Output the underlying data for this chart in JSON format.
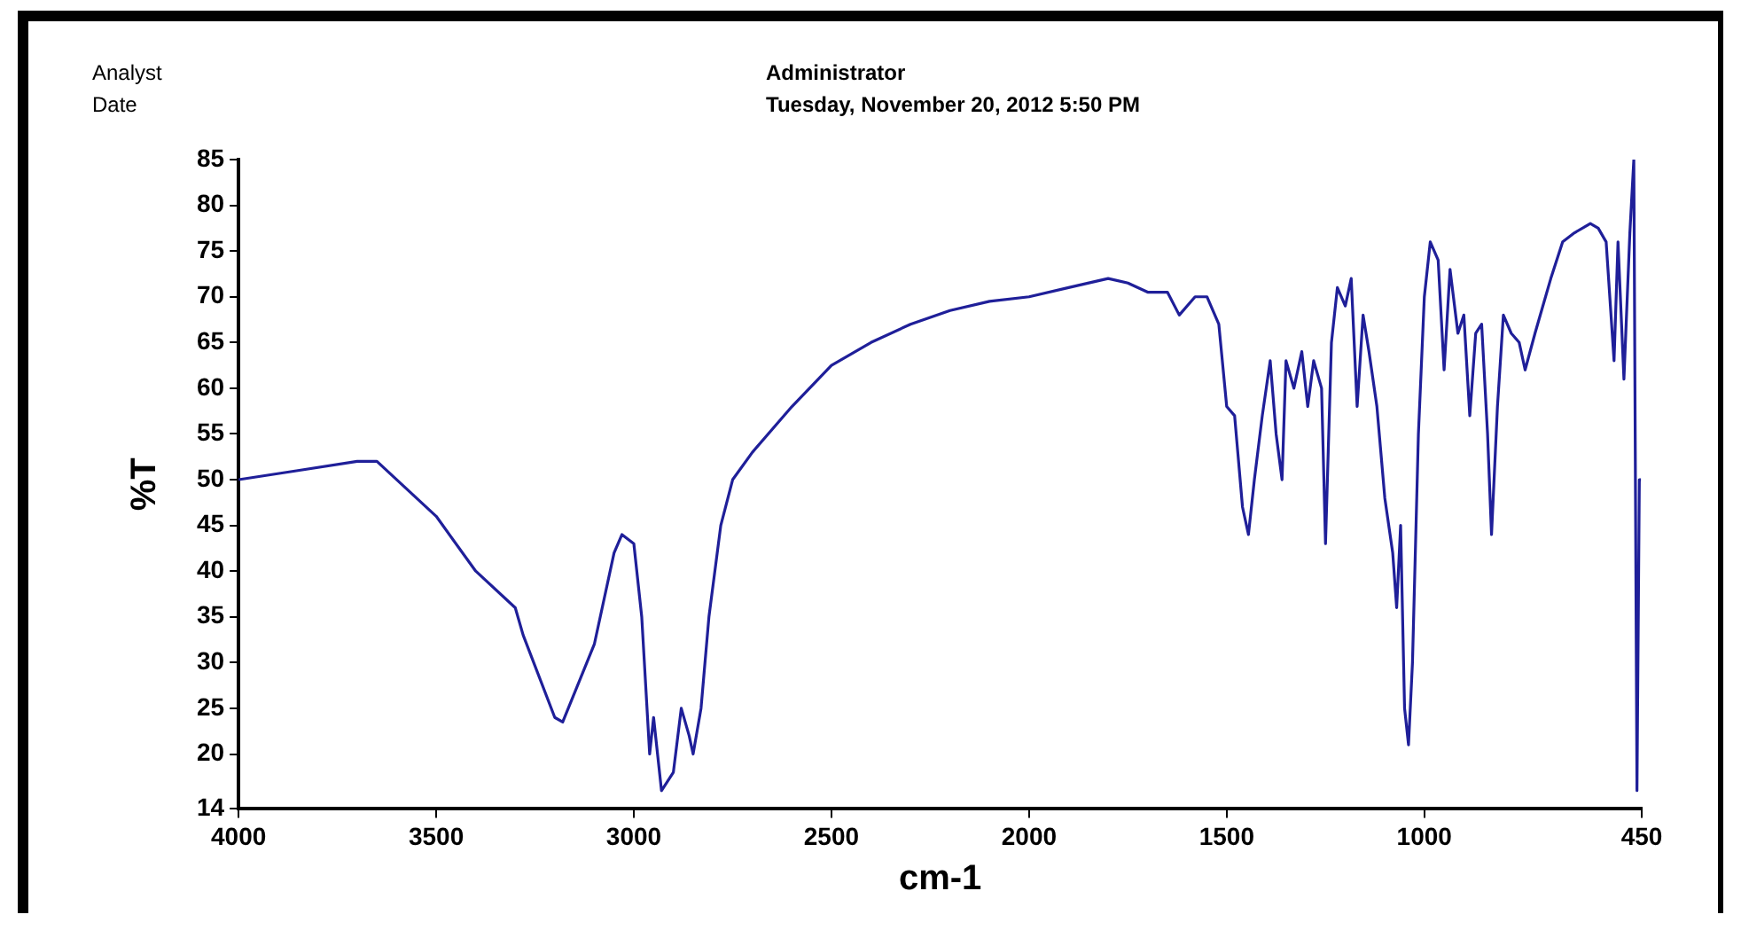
{
  "chart_data": {
    "type": "line",
    "xlabel": "cm-1",
    "ylabel": "%T",
    "annotations": [
      "Analyst",
      "Administrator",
      "Date",
      "Tuesday, November 20, 2012 5:50 PM"
    ],
    "xlim": [
      4000,
      450
    ],
    "xticks": [
      4000,
      3500,
      3000,
      2500,
      2000,
      1500,
      1000,
      450
    ],
    "ylim": [
      14,
      85
    ],
    "yticks": [
      14,
      20,
      25,
      30,
      35,
      40,
      45,
      50,
      55,
      60,
      65,
      70,
      75,
      80,
      85
    ],
    "grid": false,
    "legend": false,
    "marker": "none",
    "line_style": "solid",
    "series": [
      {
        "color": "#1f1f99",
        "x": [
          4000,
          3850,
          3700,
          3650,
          3500,
          3400,
          3300,
          3280,
          3200,
          3180,
          3100,
          3050,
          3030,
          3000,
          2980,
          2960,
          2950,
          2930,
          2900,
          2880,
          2860,
          2850,
          2830,
          2810,
          2780,
          2750,
          2700,
          2600,
          2500,
          2400,
          2300,
          2200,
          2100,
          2000,
          1900,
          1800,
          1750,
          1700,
          1650,
          1620,
          1580,
          1550,
          1520,
          1500,
          1480,
          1460,
          1445,
          1430,
          1410,
          1390,
          1375,
          1360,
          1350,
          1330,
          1310,
          1295,
          1280,
          1260,
          1250,
          1235,
          1220,
          1200,
          1185,
          1170,
          1155,
          1140,
          1120,
          1100,
          1080,
          1070,
          1060,
          1050,
          1040,
          1030,
          1015,
          1000,
          985,
          965,
          950,
          935,
          915,
          900,
          885,
          870,
          855,
          840,
          830,
          815,
          800,
          780,
          760,
          745,
          720,
          700,
          680,
          650,
          620,
          580,
          560,
          540,
          520,
          510,
          495,
          480,
          470,
          462,
          456,
          452
        ],
        "values": [
          50,
          51,
          52,
          52,
          46,
          40,
          36,
          33,
          24,
          23.5,
          32,
          42,
          44,
          43,
          35,
          20,
          24,
          16,
          18,
          25,
          22,
          20,
          25,
          35,
          45,
          50,
          53,
          58,
          62.5,
          65,
          67,
          68.5,
          69.5,
          70,
          71,
          72,
          71.5,
          70.5,
          70.5,
          68,
          70,
          70,
          67,
          58,
          57,
          47,
          44,
          50,
          57,
          63,
          55,
          50,
          63,
          60,
          64,
          58,
          63,
          60,
          43,
          65,
          71,
          69,
          72,
          58,
          68,
          64,
          58,
          48,
          42,
          36,
          45,
          25,
          21,
          30,
          55,
          70,
          76,
          74,
          62,
          73,
          66,
          68,
          57,
          66,
          67,
          55,
          44,
          58,
          68,
          66,
          65,
          62,
          66,
          69,
          72,
          76,
          77,
          78,
          77.5,
          76,
          63,
          76,
          61,
          77,
          85,
          16,
          50,
          50
        ]
      }
    ]
  }
}
